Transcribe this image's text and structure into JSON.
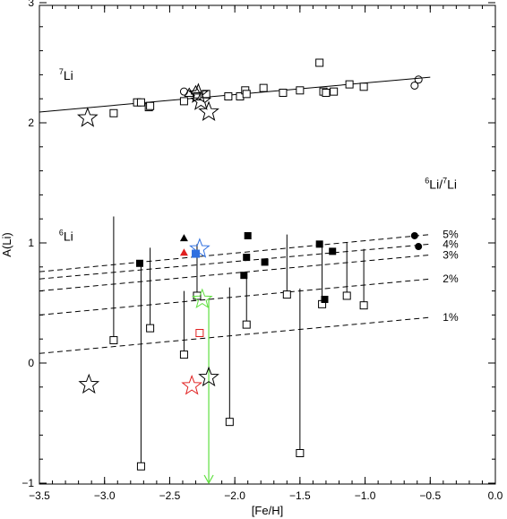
{
  "chart_data": {
    "type": "scatter",
    "xlabel": "[Fe/H]",
    "ylabel": "A(Li)",
    "xlim": [
      -3.5,
      0.0
    ],
    "ylim": [
      -1.05,
      3.0
    ],
    "x_ticks": [
      -3.5,
      -3.0,
      -2.5,
      -2.0,
      -1.5,
      -1.0,
      -0.5,
      0.0
    ],
    "x_tick_labels": [
      "−3.5",
      "−3.0",
      "−2.5",
      "−2.0",
      "−1.5",
      "−1.0",
      "−0.5",
      "0.0"
    ],
    "y_ticks": [
      -1,
      0,
      1,
      2,
      3
    ],
    "y_tick_labels": [
      "−1",
      "0",
      "1",
      "2",
      "3"
    ],
    "annotations": {
      "li7": {
        "sup": "7",
        "main": "Li",
        "x": -3.35,
        "y": 2.36
      },
      "li6": {
        "sup": "6",
        "main": "Li",
        "x": -3.35,
        "y": 1.02
      },
      "ratio": {
        "text_a": "6",
        "text_b": "Li/",
        "text_c": "7",
        "text_d": "Li",
        "x": -0.5,
        "y": 1.45
      }
    },
    "fit_li7": {
      "x": [
        -3.5,
        -0.5
      ],
      "y": [
        2.09,
        2.38
      ]
    },
    "ratio_lines": [
      {
        "label": "5%",
        "x": [
          -3.5,
          -0.5
        ],
        "y": [
          0.76,
          1.07
        ]
      },
      {
        "label": "4%",
        "x": [
          -3.5,
          -0.5
        ],
        "y": [
          0.7,
          0.99
        ]
      },
      {
        "label": "3%",
        "x": [
          -3.5,
          -0.5
        ],
        "y": [
          0.6,
          0.9
        ]
      },
      {
        "label": "2%",
        "x": [
          -3.5,
          -0.5
        ],
        "y": [
          0.4,
          0.7
        ]
      },
      {
        "label": "1%",
        "x": [
          -3.5,
          -0.5
        ],
        "y": [
          0.08,
          0.38
        ]
      }
    ],
    "li7_squares": [
      {
        "x": -2.93,
        "y": 2.08
      },
      {
        "x": -2.75,
        "y": 2.17
      },
      {
        "x": -2.72,
        "y": 2.17
      },
      {
        "x": -2.66,
        "y": 2.13
      },
      {
        "x": -2.65,
        "y": 2.14
      },
      {
        "x": -2.39,
        "y": 2.18
      },
      {
        "x": -2.29,
        "y": 2.22
      },
      {
        "x": -2.22,
        "y": 2.24
      },
      {
        "x": -2.05,
        "y": 2.22
      },
      {
        "x": -1.96,
        "y": 2.22
      },
      {
        "x": -1.92,
        "y": 2.27
      },
      {
        "x": -1.91,
        "y": 2.24
      },
      {
        "x": -1.78,
        "y": 2.29
      },
      {
        "x": -1.63,
        "y": 2.25
      },
      {
        "x": -1.5,
        "y": 2.27
      },
      {
        "x": -1.35,
        "y": 2.5
      },
      {
        "x": -1.32,
        "y": 2.26
      },
      {
        "x": -1.3,
        "y": 2.25
      },
      {
        "x": -1.24,
        "y": 2.26
      },
      {
        "x": -1.12,
        "y": 2.32
      },
      {
        "x": -1.01,
        "y": 2.3
      }
    ],
    "li7_circles": [
      {
        "x": -2.39,
        "y": 2.26
      },
      {
        "x": -0.62,
        "y": 2.31
      },
      {
        "x": -0.59,
        "y": 2.36
      }
    ],
    "li7_triangles": [
      {
        "x": -2.35,
        "y": 2.25
      },
      {
        "x": -2.3,
        "y": 2.27
      }
    ],
    "li7_stars": [
      {
        "x": -3.13,
        "y": 2.04
      },
      {
        "x": -2.28,
        "y": 2.24
      },
      {
        "x": -2.26,
        "y": 2.18
      },
      {
        "x": -2.2,
        "y": 2.09
      }
    ],
    "li6_upper_limits": [
      {
        "x": -2.93,
        "y": 0.19,
        "top": 1.22
      },
      {
        "x": -2.72,
        "y": -0.86,
        "top": 0.83
      },
      {
        "x": -2.65,
        "y": 0.29,
        "top": 0.96
      },
      {
        "x": -2.39,
        "y": 0.07,
        "top": 0.6
      },
      {
        "x": -2.29,
        "y": 0.56,
        "top": 0.99
      },
      {
        "x": -2.04,
        "y": -0.49,
        "top": 0.63
      },
      {
        "x": -1.91,
        "y": 0.32,
        "top": 0.75
      },
      {
        "x": -1.6,
        "y": 0.57,
        "top": 1.07
      },
      {
        "x": -1.5,
        "y": -0.75,
        "top": 0.62
      },
      {
        "x": -1.33,
        "y": 0.49,
        "top": 0.97
      },
      {
        "x": -1.14,
        "y": 0.56,
        "top": 1.0
      },
      {
        "x": -1.01,
        "y": 0.48,
        "top": 0.95
      }
    ],
    "li6_red_limit": {
      "x": -2.27,
      "y": 0.25
    },
    "li6_filled_squares": [
      {
        "x": -2.73,
        "y": 0.83
      },
      {
        "x": -1.93,
        "y": 0.73
      },
      {
        "x": -1.91,
        "y": 0.88
      },
      {
        "x": -1.9,
        "y": 1.06
      },
      {
        "x": -1.77,
        "y": 0.84
      },
      {
        "x": -1.35,
        "y": 0.99
      },
      {
        "x": -1.31,
        "y": 0.53
      },
      {
        "x": -1.25,
        "y": 0.93
      }
    ],
    "li6_blue_square": {
      "x": -2.3,
      "y": 0.91
    },
    "li6_filled_circles": [
      {
        "x": -0.62,
        "y": 1.06
      },
      {
        "x": -0.59,
        "y": 0.97
      }
    ],
    "li6_black_triangle": {
      "x": -2.39,
      "y": 1.04
    },
    "li6_red_triangle": {
      "x": -2.39,
      "y": 0.92
    },
    "li6_stars": [
      {
        "x": -3.12,
        "y": -0.18,
        "color": "#000000"
      },
      {
        "x": -2.2,
        "y": -0.12,
        "color": "#000000"
      },
      {
        "x": -2.33,
        "y": -0.19,
        "color": "#e02020"
      },
      {
        "x": -2.25,
        "y": 0.53,
        "color": "#60e040"
      },
      {
        "x": -2.27,
        "y": 0.95,
        "color": "#3070e0"
      }
    ],
    "green_limit": {
      "x": -2.2,
      "y_top": 0.53,
      "y_bottom": -1.05
    },
    "colors": {
      "red": "#e02020",
      "blue": "#3070e0",
      "green": "#60e040",
      "axis": "#000000"
    }
  }
}
